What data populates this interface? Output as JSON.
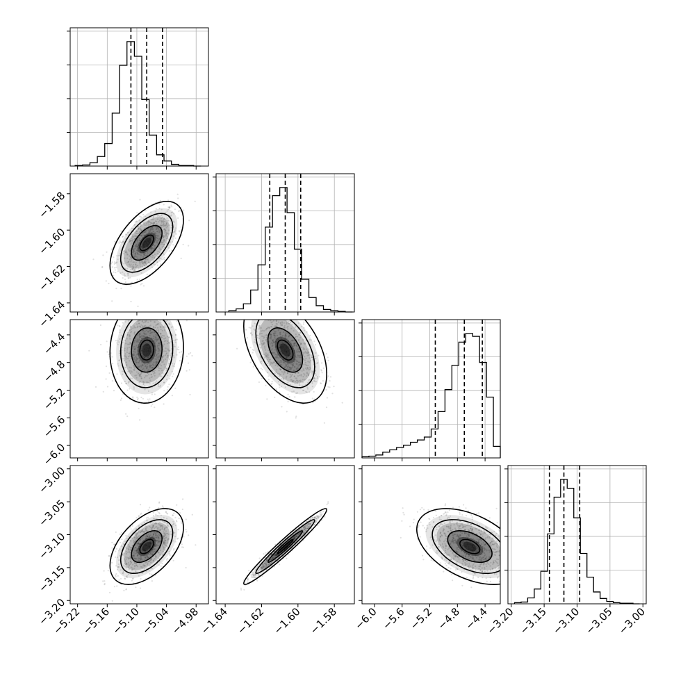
{
  "chart_data": {
    "type": "corner",
    "parameters": [
      {
        "range": [
          -5.235,
          -4.955
        ],
        "ticks": [
          -5.22,
          -5.16,
          -5.1,
          -5.04,
          -4.98
        ],
        "tick_labels": [
          "−5.22",
          "−5.16",
          "−5.10",
          "−5.04",
          "−4.98"
        ],
        "quantiles": [
          -5.112,
          -5.08,
          -5.048
        ],
        "median": -5.08,
        "hist_bins_edges": [
          -5.225,
          -5.21,
          -5.195,
          -5.18,
          -5.165,
          -5.15,
          -5.135,
          -5.12,
          -5.105,
          -5.09,
          -5.075,
          -5.06,
          -5.045,
          -5.03,
          -5.015,
          -5.0,
          -4.985,
          -4.97
        ],
        "hist_counts": [
          1,
          2,
          6,
          17,
          40,
          94,
          179,
          221,
          195,
          118,
          55,
          20,
          9,
          3,
          1,
          1,
          0
        ]
      },
      {
        "range": [
          -1.645,
          -1.569
        ],
        "ticks": [
          -1.64,
          -1.62,
          -1.6,
          -1.58
        ],
        "tick_labels": [
          "−1.64",
          "−1.62",
          "−1.60",
          "−1.58"
        ],
        "quantiles": [
          -1.6155,
          -1.607,
          -1.5985
        ],
        "median": -1.607,
        "hist_bins_edges": [
          -1.638,
          -1.634,
          -1.63,
          -1.626,
          -1.622,
          -1.618,
          -1.614,
          -1.61,
          -1.606,
          -1.602,
          -1.598,
          -1.594,
          -1.59,
          -1.586,
          -1.582,
          -1.578,
          -1.574,
          -1.57
        ],
        "hist_counts": [
          2,
          5,
          13,
          35,
          75,
          135,
          185,
          198,
          158,
          100,
          52,
          23,
          10,
          4,
          2,
          1,
          0
        ]
      },
      {
        "range": [
          -6.18,
          -4.18
        ],
        "ticks": [
          -6.0,
          -5.6,
          -5.2,
          -4.8,
          -4.4
        ],
        "tick_labels": [
          "−6.0",
          "−5.6",
          "−5.2",
          "−4.8",
          "−4.4"
        ],
        "quantiles": [
          -5.12,
          -4.7,
          -4.44
        ],
        "median": -4.7,
        "hist_bins_edges": [
          -6.18,
          -6.08,
          -5.98,
          -5.88,
          -5.78,
          -5.68,
          -5.58,
          -5.48,
          -5.38,
          -5.28,
          -5.18,
          -5.08,
          -4.98,
          -4.88,
          -4.78,
          -4.68,
          -4.58,
          -4.48,
          -4.38,
          -4.28,
          -4.18
        ],
        "hist_counts": [
          2,
          3,
          5,
          10,
          14,
          18,
          22,
          27,
          31,
          36,
          50,
          80,
          118,
          160,
          200,
          215,
          210,
          165,
          105,
          20
        ]
      },
      {
        "range": [
          -3.205,
          -2.995
        ],
        "ticks": [
          -3.2,
          -3.15,
          -3.1,
          -3.05,
          -3.0
        ],
        "tick_labels": [
          "−3.20",
          "−3.15",
          "−3.10",
          "−3.05",
          "−3.00"
        ],
        "quantiles": [
          -3.142,
          -3.12,
          -3.096
        ],
        "median": -3.12,
        "hist_bins_edges": [
          -3.195,
          -3.185,
          -3.175,
          -3.165,
          -3.155,
          -3.145,
          -3.135,
          -3.125,
          -3.115,
          -3.105,
          -3.095,
          -3.085,
          -3.075,
          -3.065,
          -3.055,
          -3.045,
          -3.035,
          -3.025,
          -3.015,
          -3.005
        ],
        "hist_counts": [
          2,
          3,
          10,
          25,
          55,
          118,
          180,
          210,
          195,
          145,
          85,
          45,
          20,
          9,
          4,
          2,
          1,
          1,
          0
        ]
      }
    ],
    "pairs": [
      {
        "row": 1,
        "col": 0,
        "x_center": -5.08,
        "y_center": -1.607,
        "x_sd": 0.031,
        "y_sd": 0.0095,
        "corr": 0.55
      },
      {
        "row": 2,
        "col": 0,
        "x_center": -5.08,
        "y_center": -4.62,
        "x_sd": 0.031,
        "y_sd": 0.32,
        "corr": 0.05
      },
      {
        "row": 2,
        "col": 1,
        "x_center": -1.607,
        "y_center": -4.62,
        "x_sd": 0.0095,
        "y_sd": 0.32,
        "corr": -0.45
      },
      {
        "row": 3,
        "col": 0,
        "x_center": -5.08,
        "y_center": -3.118,
        "x_sd": 0.031,
        "y_sd": 0.024,
        "corr": 0.5
      },
      {
        "row": 3,
        "col": 1,
        "x_center": -1.607,
        "y_center": -3.118,
        "x_sd": 0.0095,
        "y_sd": 0.024,
        "corr": 0.97
      },
      {
        "row": 3,
        "col": 2,
        "x_center": -4.62,
        "y_center": -3.118,
        "x_sd": 0.32,
        "y_sd": 0.024,
        "corr": -0.45
      }
    ],
    "grid": true,
    "xlabel": "",
    "ylabel": "",
    "title": ""
  }
}
